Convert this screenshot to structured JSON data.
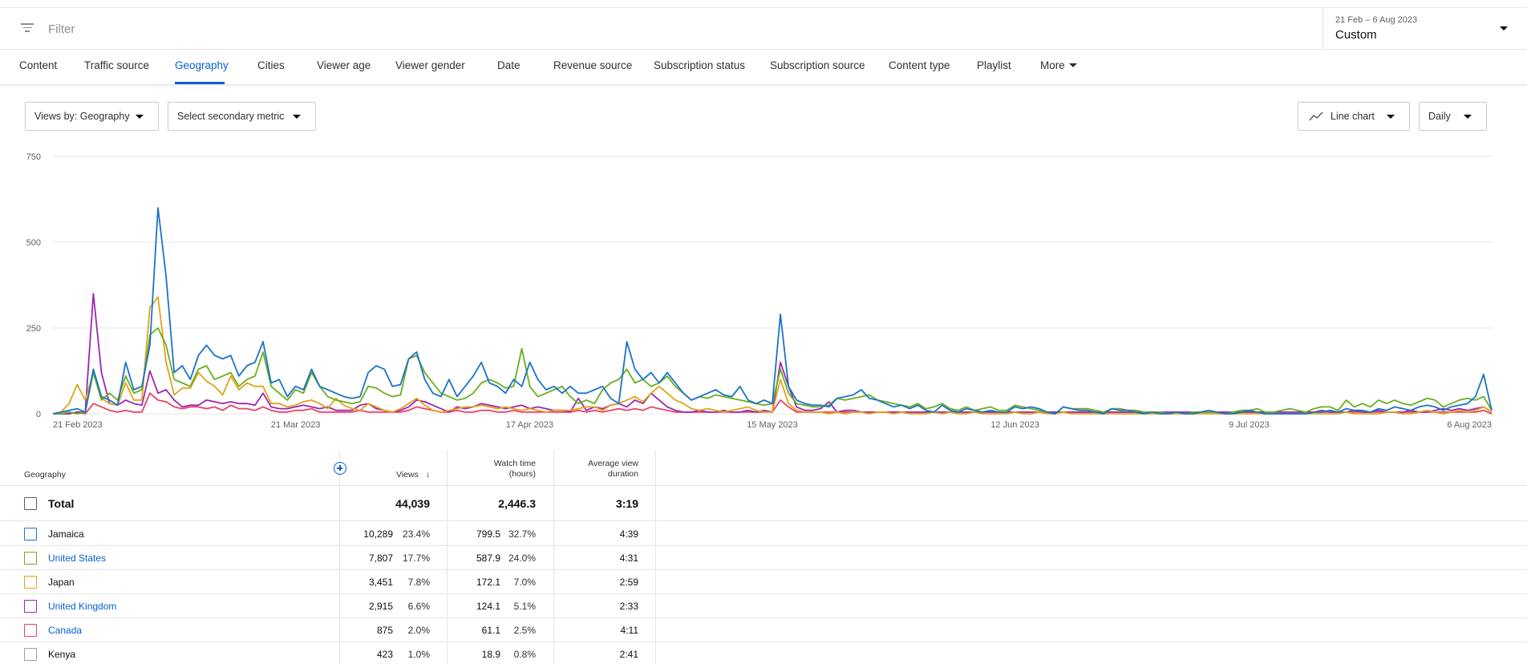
{
  "filter": {
    "placeholder": "Filter",
    "icon": "filter-icon"
  },
  "date": {
    "range": "21 Feb – 6 Aug 2023",
    "label": "Custom"
  },
  "tabs": [
    "Content",
    "Traffic source",
    "Geography",
    "Cities",
    "Viewer age",
    "Viewer gender",
    "Date",
    "Revenue source",
    "Subscription status",
    "Subscription source",
    "Content type",
    "Playlist",
    "More"
  ],
  "active_tab": "Geography",
  "controls": {
    "primary_metric": "Views by: Geography",
    "secondary_metric": "Select secondary metric",
    "chart_type": "Line chart",
    "interval": "Daily"
  },
  "colors": {
    "accent": "#065fd4",
    "Jamaica": "#1a73c8",
    "United States": "#6aaf1a",
    "Japan": "#e3a21a",
    "United Kingdom": "#9c27b0",
    "Canada": "#e8416a",
    "Kenya": "#9e9e9e"
  },
  "chart_data": {
    "type": "line",
    "ylim": [
      0,
      750
    ],
    "yticks": [
      "0",
      "250",
      "500",
      "750"
    ],
    "xticks": [
      "21 Feb 2023",
      "21 Mar 2023",
      "17 Apr 2023",
      "15 May 2023",
      "12 Jun 2023",
      "9 Jul 2023",
      "6 Aug 2023"
    ],
    "x_range": [
      "21 Feb 2023",
      "6 Aug 2023"
    ],
    "series": [
      {
        "name": "Jamaica",
        "values": [
          0,
          5,
          10,
          15,
          5,
          130,
          50,
          40,
          25,
          150,
          70,
          80,
          200,
          600,
          400,
          120,
          140,
          100,
          170,
          200,
          170,
          160,
          170,
          110,
          140,
          150,
          210,
          90,
          100,
          50,
          80,
          70,
          130,
          80,
          70,
          60,
          50,
          45,
          50,
          120,
          140,
          130,
          80,
          85,
          160,
          180,
          100,
          60,
          50,
          100,
          50,
          80,
          110,
          150,
          90,
          80,
          60,
          100,
          80,
          150,
          100,
          70,
          80,
          60,
          80,
          60,
          60,
          70,
          80,
          45,
          30,
          210,
          130,
          100,
          120,
          90,
          120,
          90,
          60,
          40,
          50,
          60,
          70,
          55,
          50,
          80,
          40,
          30,
          40,
          30,
          290,
          80,
          40,
          30,
          25,
          25,
          20,
          45,
          50,
          55,
          70,
          45,
          40,
          30,
          20,
          25,
          15,
          25,
          10,
          5,
          25,
          10,
          5,
          15,
          10,
          5,
          10,
          5,
          5,
          20,
          15,
          20,
          15,
          5,
          0,
          20,
          15,
          10,
          10,
          5,
          0,
          15,
          10,
          10,
          5,
          0,
          5,
          0,
          0,
          5,
          0,
          0,
          5,
          10,
          5,
          0,
          0,
          5,
          10,
          5,
          0,
          0,
          0,
          0,
          0,
          0,
          5,
          5,
          10,
          5,
          15,
          10,
          10,
          5,
          15,
          10,
          20,
          15,
          10,
          20,
          25,
          20,
          10,
          20,
          25,
          30,
          50,
          115,
          10
        ]
      },
      {
        "name": "United States",
        "values": [
          0,
          0,
          5,
          0,
          5,
          120,
          40,
          60,
          40,
          110,
          60,
          70,
          230,
          250,
          200,
          100,
          90,
          80,
          130,
          140,
          100,
          110,
          120,
          80,
          100,
          110,
          180,
          80,
          60,
          40,
          70,
          60,
          120,
          80,
          50,
          40,
          35,
          30,
          35,
          80,
          75,
          60,
          50,
          55,
          160,
          170,
          120,
          90,
          60,
          50,
          40,
          45,
          60,
          90,
          100,
          90,
          75,
          80,
          190,
          80,
          50,
          60,
          70,
          80,
          50,
          30,
          40,
          30,
          70,
          90,
          100,
          130,
          90,
          100,
          80,
          90,
          110,
          80,
          60,
          40,
          50,
          45,
          55,
          50,
          45,
          40,
          35,
          30,
          25,
          30,
          130,
          60,
          30,
          25,
          20,
          20,
          25,
          45,
          40,
          45,
          50,
          55,
          40,
          35,
          30,
          25,
          20,
          30,
          15,
          20,
          30,
          15,
          10,
          20,
          10,
          15,
          20,
          10,
          10,
          25,
          20,
          15,
          10,
          5,
          0,
          20,
          15,
          15,
          15,
          10,
          5,
          15,
          15,
          10,
          10,
          5,
          5,
          5,
          0,
          5,
          0,
          5,
          5,
          5,
          5,
          0,
          5,
          10,
          10,
          15,
          5,
          5,
          10,
          15,
          10,
          5,
          15,
          20,
          20,
          10,
          40,
          20,
          30,
          20,
          40,
          30,
          40,
          30,
          25,
          35,
          45,
          40,
          20,
          30,
          40,
          45,
          40,
          50,
          10
        ]
      },
      {
        "name": "Japan",
        "values": [
          0,
          5,
          30,
          85,
          40,
          120,
          45,
          30,
          25,
          90,
          40,
          40,
          310,
          340,
          150,
          55,
          75,
          75,
          120,
          95,
          80,
          55,
          110,
          70,
          90,
          80,
          80,
          30,
          30,
          20,
          25,
          35,
          40,
          30,
          15,
          45,
          25,
          15,
          10,
          30,
          20,
          10,
          5,
          15,
          30,
          45,
          25,
          10,
          5,
          10,
          15,
          20,
          20,
          25,
          20,
          15,
          20,
          15,
          10,
          15,
          10,
          5,
          10,
          10,
          10,
          15,
          20,
          20,
          10,
          25,
          30,
          40,
          50,
          35,
          60,
          80,
          60,
          40,
          30,
          15,
          10,
          15,
          10,
          5,
          10,
          15,
          20,
          10,
          5,
          5,
          100,
          30,
          10,
          5,
          5,
          5,
          0,
          5,
          0,
          5,
          5,
          0,
          5,
          5,
          0,
          5,
          0,
          0,
          0,
          5,
          0,
          5,
          0,
          0,
          5,
          0,
          0,
          0,
          0,
          5,
          0,
          0,
          5,
          0,
          0,
          5,
          0,
          0,
          0,
          0,
          0,
          0,
          0,
          0,
          0,
          0,
          0,
          0,
          0,
          0,
          0,
          0,
          0,
          0,
          0,
          0,
          0,
          0,
          0,
          0,
          0,
          0,
          0,
          0,
          0,
          0,
          0,
          0,
          0,
          0,
          5,
          0,
          0,
          0,
          0,
          5,
          5,
          0,
          0,
          5,
          10,
          5,
          0,
          5,
          10,
          5,
          10,
          20,
          5
        ]
      },
      {
        "name": "United Kingdom",
        "values": [
          0,
          0,
          0,
          5,
          5,
          350,
          120,
          30,
          25,
          40,
          30,
          25,
          125,
          60,
          70,
          40,
          20,
          25,
          25,
          40,
          35,
          30,
          35,
          30,
          30,
          25,
          60,
          20,
          15,
          15,
          20,
          25,
          20,
          15,
          20,
          10,
          10,
          10,
          25,
          30,
          15,
          10,
          5,
          10,
          20,
          40,
          35,
          25,
          15,
          5,
          20,
          15,
          20,
          30,
          25,
          20,
          15,
          20,
          25,
          15,
          20,
          15,
          10,
          10,
          5,
          45,
          10,
          20,
          15,
          25,
          30,
          20,
          40,
          30,
          60,
          40,
          20,
          10,
          5,
          5,
          10,
          5,
          5,
          10,
          5,
          5,
          10,
          5,
          10,
          5,
          150,
          80,
          20,
          10,
          10,
          15,
          35,
          5,
          10,
          10,
          5,
          5,
          5,
          5,
          5,
          5,
          5,
          5,
          5,
          5,
          5,
          5,
          5,
          5,
          5,
          5,
          5,
          5,
          5,
          5,
          5,
          5,
          5,
          5,
          5,
          5,
          5,
          5,
          5,
          5,
          5,
          5,
          5,
          5,
          5,
          5,
          5,
          5,
          5,
          5,
          5,
          5,
          5,
          5,
          5,
          5,
          5,
          5,
          5,
          5,
          5,
          5,
          5,
          5,
          5,
          5,
          5,
          10,
          5,
          5,
          5,
          10,
          5,
          5,
          10,
          5,
          5,
          5,
          10,
          5,
          5,
          10,
          15,
          10,
          15,
          10,
          15,
          20,
          5
        ]
      },
      {
        "name": "Canada",
        "values": [
          0,
          0,
          0,
          5,
          0,
          30,
          20,
          10,
          5,
          10,
          5,
          5,
          60,
          40,
          35,
          20,
          15,
          20,
          20,
          15,
          20,
          10,
          25,
          15,
          15,
          10,
          20,
          10,
          5,
          5,
          10,
          10,
          15,
          5,
          5,
          5,
          5,
          5,
          10,
          5,
          5,
          5,
          5,
          5,
          10,
          20,
          15,
          10,
          5,
          5,
          10,
          5,
          5,
          10,
          10,
          5,
          5,
          10,
          5,
          5,
          5,
          5,
          5,
          5,
          5,
          10,
          5,
          10,
          5,
          10,
          15,
          10,
          15,
          10,
          20,
          15,
          10,
          5,
          5,
          5,
          5,
          5,
          5,
          5,
          5,
          5,
          5,
          5,
          5,
          5,
          40,
          20,
          5,
          5,
          5,
          5,
          5,
          5,
          5,
          5,
          5,
          5,
          5,
          5,
          5,
          5,
          5,
          5,
          5,
          5,
          5,
          5,
          5,
          5,
          5,
          5,
          5,
          5,
          5,
          5,
          5,
          5,
          5,
          5,
          5,
          5,
          5,
          5,
          5,
          5,
          5,
          5,
          5,
          5,
          5,
          5,
          5,
          5,
          5,
          5,
          5,
          5,
          5,
          5,
          5,
          5,
          5,
          5,
          5,
          5,
          5,
          5,
          5,
          5,
          5,
          5,
          5,
          5,
          5,
          5,
          5,
          5,
          5,
          5,
          5,
          5,
          5,
          5,
          5,
          5,
          5,
          5,
          5,
          5,
          5,
          5,
          5,
          10,
          0
        ]
      }
    ]
  },
  "table": {
    "headers": {
      "dimension": "Geography",
      "views": "Views",
      "watch_time": [
        "Watch time",
        "(hours)"
      ],
      "avg_duration": [
        "Average view",
        "duration"
      ]
    },
    "sort": "views-descending",
    "total": {
      "label": "Total",
      "views": "44,039",
      "watch_time": "2,446.3",
      "avg_duration": "3:19"
    },
    "rows": [
      {
        "name": "Jamaica",
        "link": false,
        "views": "10,289",
        "views_pct": "23.4%",
        "watch": "799.5",
        "watch_pct": "32.7%",
        "avg": "4:39"
      },
      {
        "name": "United States",
        "link": true,
        "views": "7,807",
        "views_pct": "17.7%",
        "watch": "587.9",
        "watch_pct": "24.0%",
        "avg": "4:31"
      },
      {
        "name": "Japan",
        "link": false,
        "views": "3,451",
        "views_pct": "7.8%",
        "watch": "172.1",
        "watch_pct": "7.0%",
        "avg": "2:59"
      },
      {
        "name": "United Kingdom",
        "link": true,
        "views": "2,915",
        "views_pct": "6.6%",
        "watch": "124.1",
        "watch_pct": "5.1%",
        "avg": "2:33"
      },
      {
        "name": "Canada",
        "link": true,
        "views": "875",
        "views_pct": "2.0%",
        "watch": "61.1",
        "watch_pct": "2.5%",
        "avg": "4:11"
      },
      {
        "name": "Kenya",
        "link": false,
        "views": "423",
        "views_pct": "1.0%",
        "watch": "18.9",
        "watch_pct": "0.8%",
        "avg": "2:41"
      }
    ]
  }
}
